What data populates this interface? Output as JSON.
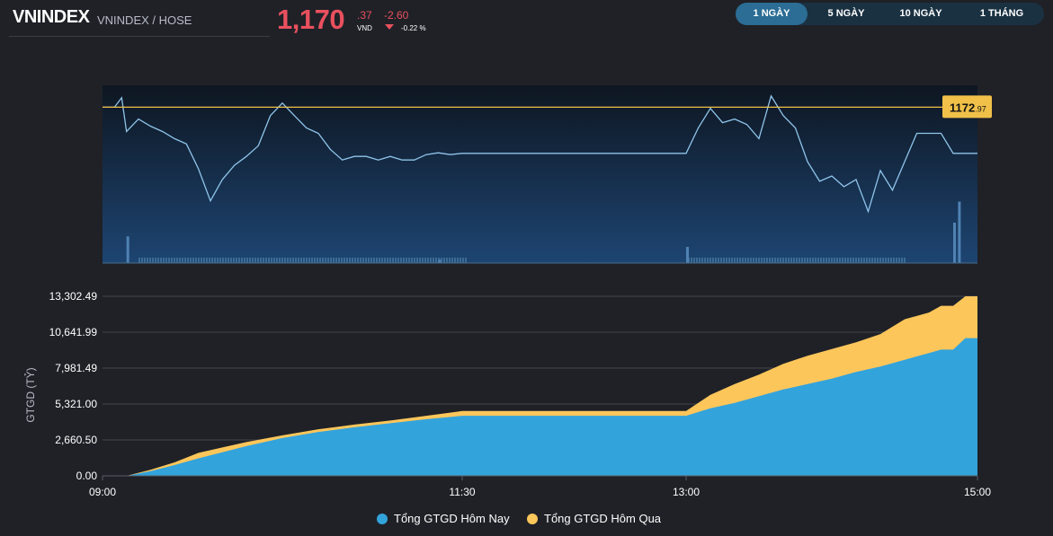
{
  "header": {
    "symbol": "VNINDEX",
    "subtitle": "VNINDEX / HOSE",
    "price_main": "1,170",
    "price_decimal": ".37",
    "currency": "VND",
    "change": "-2.60",
    "change_percent": "-0.22 %",
    "direction": "down"
  },
  "tabs": [
    {
      "label": "1 NGÀY",
      "active": true
    },
    {
      "label": "5 NGÀY",
      "active": false
    },
    {
      "label": "10 NGÀY",
      "active": false
    },
    {
      "label": "1 THÁNG",
      "active": false
    }
  ],
  "colors": {
    "background": "#1f2127",
    "down_red": "#e9505e",
    "index_line": "#8fc4ea",
    "reference_line": "#f0c049",
    "today_value": "#33a3dc",
    "yesterday_value": "#fdc65a"
  },
  "chart_data": [
    {
      "type": "line",
      "reference_value": 1172.97,
      "reference_label_main": "1172",
      "reference_label_decimal": ".97",
      "ylim": [
        1164.2,
        1174.2
      ],
      "x": [
        "09:00",
        "09:05",
        "09:08",
        "09:10",
        "09:15",
        "09:20",
        "09:25",
        "09:30",
        "09:35",
        "09:40",
        "09:45",
        "09:50",
        "09:55",
        "10:00",
        "10:05",
        "10:10",
        "10:15",
        "10:20",
        "10:25",
        "10:30",
        "10:35",
        "10:40",
        "10:45",
        "10:50",
        "10:55",
        "11:00",
        "11:05",
        "11:10",
        "11:15",
        "11:20",
        "11:25",
        "11:30",
        "13:00",
        "13:05",
        "13:10",
        "13:15",
        "13:20",
        "13:25",
        "13:30",
        "13:35",
        "13:40",
        "13:45",
        "13:50",
        "13:55",
        "14:00",
        "14:05",
        "14:10",
        "14:15",
        "14:20",
        "14:25",
        "14:30",
        "14:35",
        "14:40",
        "14:45",
        "14:50",
        "14:55",
        "15:00"
      ],
      "values": [
        1172.97,
        1172.97,
        1173.5,
        1171.6,
        1172.3,
        1171.9,
        1171.6,
        1171.2,
        1170.9,
        1169.5,
        1167.7,
        1168.9,
        1169.7,
        1170.2,
        1170.8,
        1172.5,
        1173.2,
        1172.5,
        1171.8,
        1171.5,
        1170.6,
        1170.0,
        1170.2,
        1170.2,
        1170.0,
        1170.2,
        1170.0,
        1170.0,
        1170.3,
        1170.4,
        1170.3,
        1170.37,
        1170.37,
        1171.8,
        1172.9,
        1172.1,
        1172.3,
        1172.0,
        1171.2,
        1173.6,
        1172.5,
        1171.8,
        1169.9,
        1168.8,
        1169.1,
        1168.5,
        1168.9,
        1167.1,
        1169.4,
        1168.3,
        1169.9,
        1171.5,
        1171.5,
        1171.5,
        1170.37,
        1170.37,
        1170.37
      ]
    },
    {
      "type": "bar",
      "description_units": "matched volume",
      "bars": [
        {
          "x": "09:10",
          "v": 0.33
        },
        {
          "x": "11:20",
          "v": 0.04
        },
        {
          "x": "13:00",
          "v": 0.2
        },
        {
          "x": "14:50",
          "v": 0.5
        },
        {
          "x": "14:52",
          "v": 0.76
        }
      ]
    },
    {
      "type": "area",
      "ylabel": "GTGD (TỶ)",
      "yticks": [
        "0.00",
        "2,660.50",
        "5,321.00",
        "7,981.49",
        "10,641.99",
        "13,302.49"
      ],
      "ylim": [
        0,
        13302.49
      ],
      "xticks": [
        "09:00",
        "11:30",
        "13:00",
        "15:00"
      ],
      "x": [
        "09:00",
        "09:10",
        "09:20",
        "09:30",
        "09:40",
        "10:00",
        "10:15",
        "10:30",
        "10:45",
        "11:00",
        "11:15",
        "11:30",
        "13:00",
        "13:10",
        "13:20",
        "13:30",
        "13:40",
        "13:50",
        "14:00",
        "14:10",
        "14:20",
        "14:30",
        "14:40",
        "14:45",
        "14:50",
        "14:55",
        "15:00"
      ],
      "series": [
        {
          "name": "Tổng GTGD Hôm Nay",
          "values": [
            0,
            0,
            350,
            800,
            1300,
            2200,
            2800,
            3250,
            3600,
            3900,
            4200,
            4450,
            4450,
            5000,
            5400,
            5900,
            6400,
            6800,
            7200,
            7700,
            8100,
            8600,
            9100,
            9350,
            9350,
            10200,
            10200
          ]
        },
        {
          "name": "Tổng GTGD Hôm Qua",
          "values": [
            0,
            0,
            450,
            1000,
            1700,
            2500,
            3000,
            3450,
            3800,
            4100,
            4450,
            4800,
            4800,
            6000,
            6800,
            7500,
            8300,
            8900,
            9400,
            9900,
            10500,
            11600,
            12100,
            12600,
            12600,
            13300,
            13300
          ]
        }
      ],
      "legend": "bottom"
    }
  ]
}
